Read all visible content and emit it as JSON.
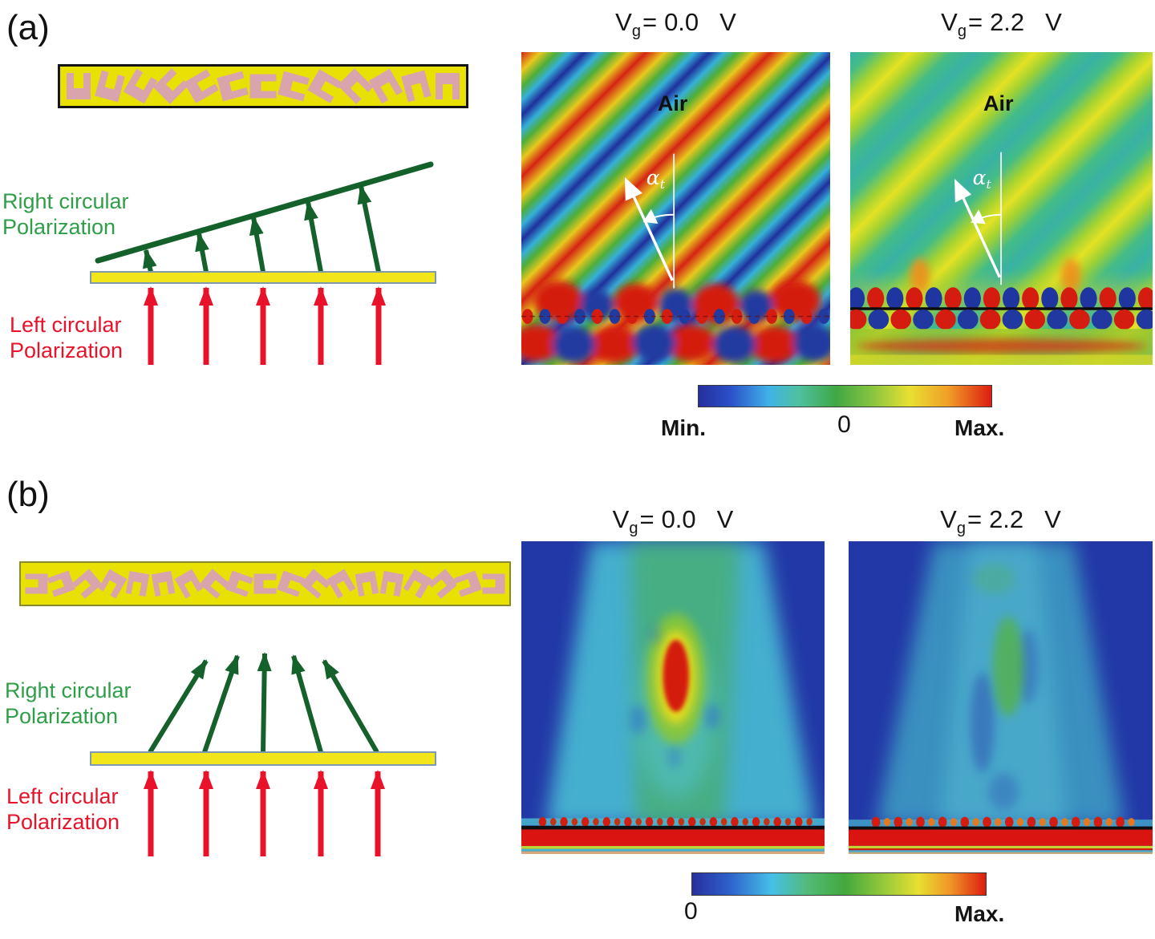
{
  "figure": {
    "panel_a": {
      "label": "(a)",
      "rcp_line1": "Right circular",
      "rcp_line2": "Polarization",
      "lcp_line1": "Left circular",
      "lcp_line2": "Polarization",
      "unitcell_angles": [
        0,
        15,
        30,
        45,
        60,
        75,
        90,
        105,
        120,
        135,
        150,
        165,
        180
      ],
      "map1": {
        "sym": "V",
        "sub": "g",
        "eq": "=",
        "val": "0.0",
        "unit": "V",
        "medium": "Air",
        "angle": "α",
        "angle_sub": "t"
      },
      "map2": {
        "sym": "V",
        "sub": "g",
        "eq": "=",
        "val": "2.2",
        "unit": "V",
        "medium": "Air",
        "angle": "α",
        "angle_sub": "t"
      },
      "colorbar": {
        "min_label": "Min.",
        "zero_label": "0",
        "max_label": "Max."
      }
    },
    "panel_b": {
      "label": "(b)",
      "rcp_line1": "Right circular",
      "rcp_line2": "Polarization",
      "lcp_line1": "Left circular",
      "lcp_line2": "Polarization",
      "unitcell_angles": [
        270,
        250,
        230,
        210,
        190,
        170,
        150,
        130,
        110,
        90,
        110,
        130,
        150,
        170,
        190,
        210,
        230,
        250,
        270
      ],
      "map1": {
        "sym": "V",
        "sub": "g",
        "eq": "=",
        "val": "0.0",
        "unit": "V"
      },
      "map2": {
        "sym": "V",
        "sub": "g",
        "eq": "=",
        "val": "2.2",
        "unit": "V"
      },
      "colorbar": {
        "zero_label": "0",
        "max_label": "Max."
      }
    },
    "colors": {
      "bar_yellow": "#e9e104",
      "cell_pink": "#d9a4ac",
      "rcp_green": "#2f9e48",
      "lcp_red": "#e8132a",
      "jet_min_blue": "#262f9e",
      "jet_zero_green": "#3fa844",
      "jet_max_red": "#dd1c10"
    }
  }
}
